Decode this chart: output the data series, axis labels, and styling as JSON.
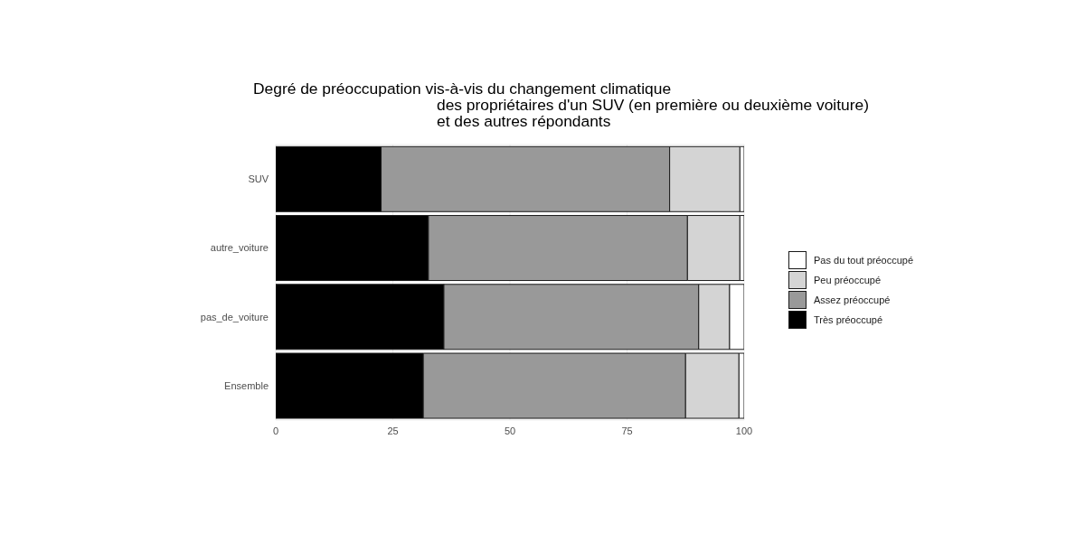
{
  "chart_data": {
    "type": "bar",
    "orientation": "horizontal",
    "stacked": true,
    "title": "Degré de préoccupation vis-à-vis du changement climatique\ndes propriétaires d'un SUV (en première ou deuxième voiture)\net des autres répondants",
    "categories": [
      "SUV",
      "autre_voiture",
      "pas_de_voiture",
      "Ensemble"
    ],
    "series": [
      {
        "name": "Très préoccupé",
        "color": "#000000",
        "values": [
          22.5,
          32.6,
          35.9,
          31.5
        ]
      },
      {
        "name": "Assez préoccupé",
        "color": "#999999",
        "values": [
          61.6,
          55.3,
          54.4,
          56.0
        ]
      },
      {
        "name": "Peu préoccupé",
        "color": "#d4d4d4",
        "values": [
          15.0,
          11.2,
          6.6,
          11.4
        ]
      },
      {
        "name": "Pas du tout préoccupé",
        "color": "#ffffff",
        "values": [
          0.9,
          0.9,
          3.1,
          1.1
        ]
      }
    ],
    "xlim": [
      0,
      100
    ],
    "xticks": [
      0,
      25,
      50,
      75,
      100
    ],
    "grid": true,
    "legend": "right"
  }
}
